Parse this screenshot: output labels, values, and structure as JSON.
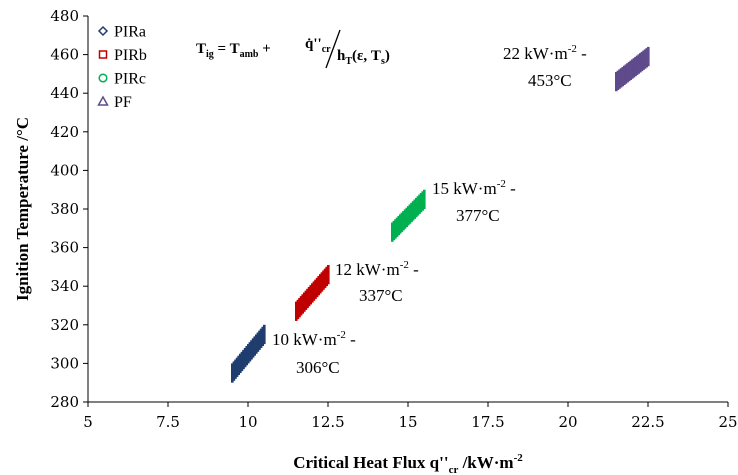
{
  "chart_data": {
    "type": "scatter",
    "xlabel": "Critical Heat Flux q''cr /kW·m-2",
    "xlabel_parts": {
      "main": "Critical Heat Flux q''",
      "sub": "cr",
      "unit": " /kW·m",
      "sup": "-2"
    },
    "ylabel": "Ignition Temperature  /°C",
    "xlim": [
      5,
      25
    ],
    "ylim": [
      280,
      480
    ],
    "xticks": [
      5,
      7.5,
      10,
      12.5,
      15,
      17.5,
      20,
      22.5,
      25
    ],
    "xtick_labels": [
      "5",
      "7.5",
      "10",
      "12.5",
      "15",
      "17.5",
      "20",
      "22.5",
      "25"
    ],
    "yticks": [
      280,
      300,
      320,
      340,
      360,
      380,
      400,
      420,
      440,
      460,
      480
    ],
    "ytick_labels": [
      "280",
      "300",
      "320",
      "340",
      "360",
      "380",
      "400",
      "420",
      "440",
      "460",
      "480"
    ],
    "grid": false,
    "legend_position": "top-left",
    "formula": "Tig = Tamb + q̇''cr / hT(ε, Ts)",
    "series": [
      {
        "name": "PIRa",
        "marker": "diamond",
        "color": "#1f3d6e",
        "x_range": [
          9.5,
          10.5
        ],
        "y_start": [
          290,
          300
        ],
        "y_end": [
          310,
          320
        ]
      },
      {
        "name": "PIRb",
        "marker": "square",
        "color": "#c00000",
        "x_range": [
          11.5,
          12.5
        ],
        "y_start": [
          322,
          332
        ],
        "y_end": [
          341,
          351
        ]
      },
      {
        "name": "PIRc",
        "marker": "circle",
        "color": "#00b050",
        "x_range": [
          14.5,
          15.5
        ],
        "y_start": [
          363,
          373
        ],
        "y_end": [
          380,
          390
        ]
      },
      {
        "name": "PF",
        "marker": "triangle",
        "color": "#5f4b8b",
        "x_range": [
          21.5,
          22.5
        ],
        "y_start": [
          441,
          451
        ],
        "y_end": [
          454,
          464
        ]
      }
    ],
    "annotations": [
      {
        "line1": "10 kW·m",
        "sup": "-2",
        "line1_end": " -",
        "line2": "306°C"
      },
      {
        "line1": "12 kW·m",
        "sup": "-2",
        "line1_end": " -",
        "line2": "337°C"
      },
      {
        "line1": "15 kW·m",
        "sup": "-2",
        "line1_end": " -",
        "line2": "377°C"
      },
      {
        "line1": "22 kW·m",
        "sup": "-2",
        "line1_end": " -",
        "line2": "453°C"
      }
    ]
  }
}
